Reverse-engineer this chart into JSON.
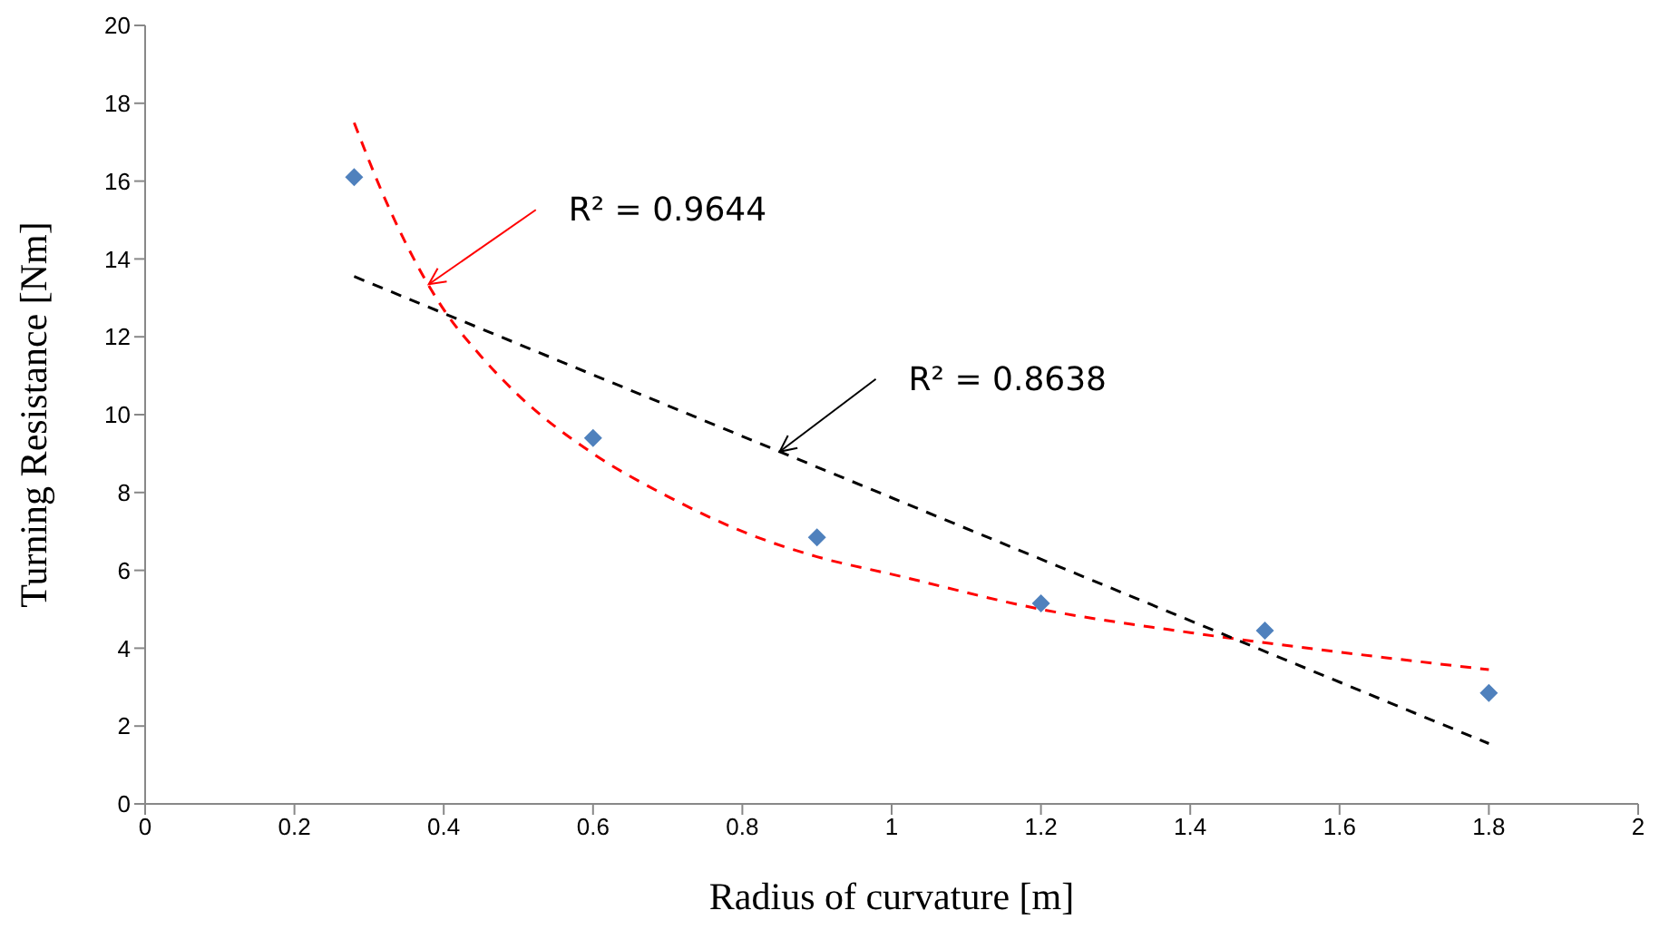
{
  "chart_data": {
    "type": "scatter",
    "xlabel": "Radius of curvature [m]",
    "ylabel": "Turning Resistance [Nm]",
    "xlim": [
      0,
      2
    ],
    "xticks": [
      0,
      0.2,
      0.4,
      0.6,
      0.8,
      1,
      1.2,
      1.4,
      1.6,
      1.8,
      2
    ],
    "ylim": [
      0,
      20
    ],
    "yticks": [
      0,
      2,
      4,
      6,
      8,
      10,
      12,
      14,
      16,
      18,
      20
    ],
    "grid": false,
    "legend": false,
    "series": [
      {
        "color": "#4f81bd",
        "marker": "diamond",
        "x": [
          0.28,
          0.6,
          0.9,
          1.2,
          1.5,
          1.8
        ],
        "values": [
          16.1,
          9.4,
          6.85,
          5.15,
          4.45,
          2.85
        ]
      },
      {
        "type": "line",
        "color": "#ff0000",
        "line_style": "dashed",
        "x": [
          0.28,
          0.32,
          0.36,
          0.4,
          0.45,
          0.5,
          0.6,
          0.7,
          0.8,
          0.9,
          1.0,
          1.2,
          1.4,
          1.6,
          1.8
        ],
        "values": [
          17.5,
          15.6,
          14.0,
          12.7,
          11.5,
          10.5,
          9.0,
          7.9,
          7.0,
          6.35,
          5.9,
          5.0,
          4.4,
          3.9,
          3.45
        ]
      },
      {
        "type": "line",
        "color": "#000000",
        "line_style": "dashed",
        "x": [
          0.28,
          1.8
        ],
        "values": [
          13.55,
          1.55
        ]
      }
    ],
    "annotations": [
      {
        "text": "R² = 0.9644",
        "x": 0.38,
        "y": 13.35
      },
      {
        "text": "R² = 0.8638",
        "x": 0.85,
        "y": 9.05
      }
    ]
  }
}
